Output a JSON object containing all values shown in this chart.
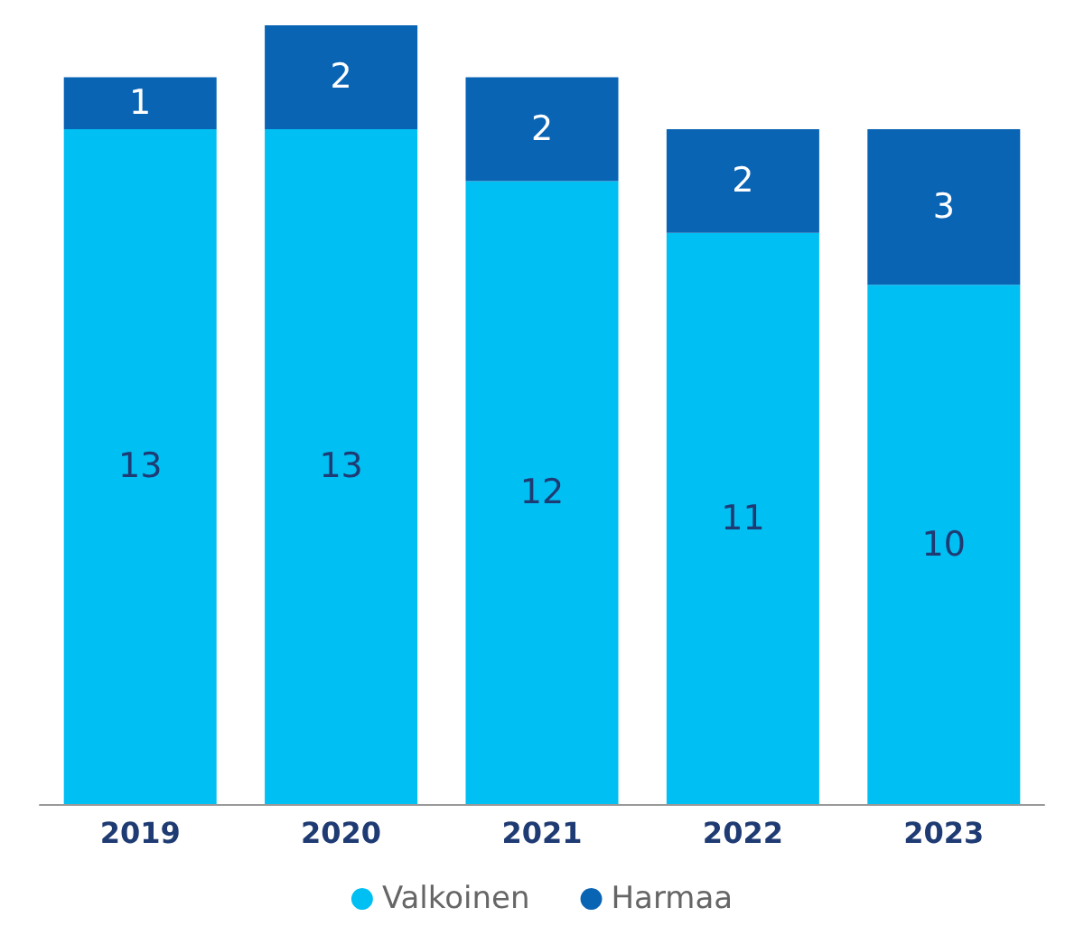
{
  "chart_data": {
    "type": "bar",
    "stacked": true,
    "data_labels": true,
    "legend": "bottom",
    "categories": [
      "2019",
      "2020",
      "2021",
      "2022",
      "2023"
    ],
    "series": [
      {
        "name": "Valkoinen",
        "color": "#00bff3",
        "values": [
          13,
          13,
          12,
          11,
          10
        ]
      },
      {
        "name": "Harmaa",
        "color": "#0a64b4",
        "values": [
          1,
          2,
          2,
          2,
          3
        ]
      }
    ]
  }
}
